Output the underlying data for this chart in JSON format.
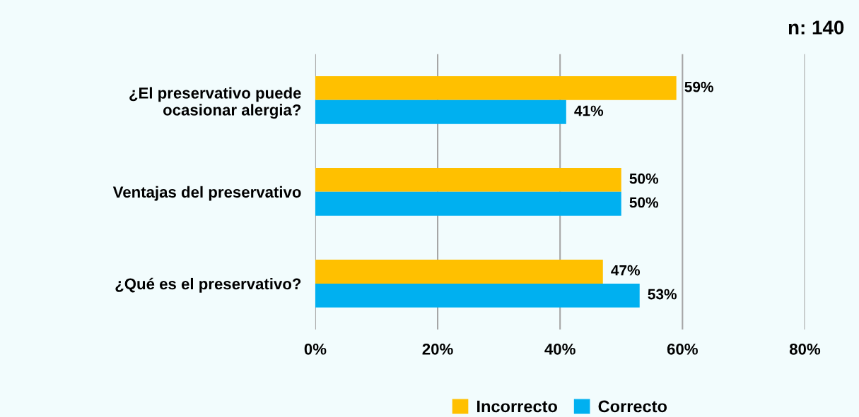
{
  "chart_data": {
    "type": "bar",
    "orientation": "horizontal",
    "categories": [
      "¿El preservativo puede\nocasionar alergia?",
      "Ventajas del preservativo",
      "¿Qué es el preservativo?"
    ],
    "series": [
      {
        "name": "Incorrecto",
        "color": "#ffc000",
        "values": [
          59,
          50,
          47
        ],
        "value_labels": [
          "59%",
          "50%",
          "47%"
        ]
      },
      {
        "name": "Correcto",
        "color": "#00b0f0",
        "values": [
          41,
          50,
          53
        ],
        "value_labels": [
          "41%",
          "50%",
          "53%"
        ]
      }
    ],
    "xlim": [
      0,
      80
    ],
    "xticks": [
      {
        "value": 0,
        "label": "0%"
      },
      {
        "value": 20,
        "label": "20%"
      },
      {
        "value": 40,
        "label": "40%"
      },
      {
        "value": 60,
        "label": "60%"
      },
      {
        "value": 80,
        "label": "80%"
      }
    ],
    "grid": "x",
    "legend": "bottom",
    "annotations": [
      "n: 140"
    ]
  }
}
